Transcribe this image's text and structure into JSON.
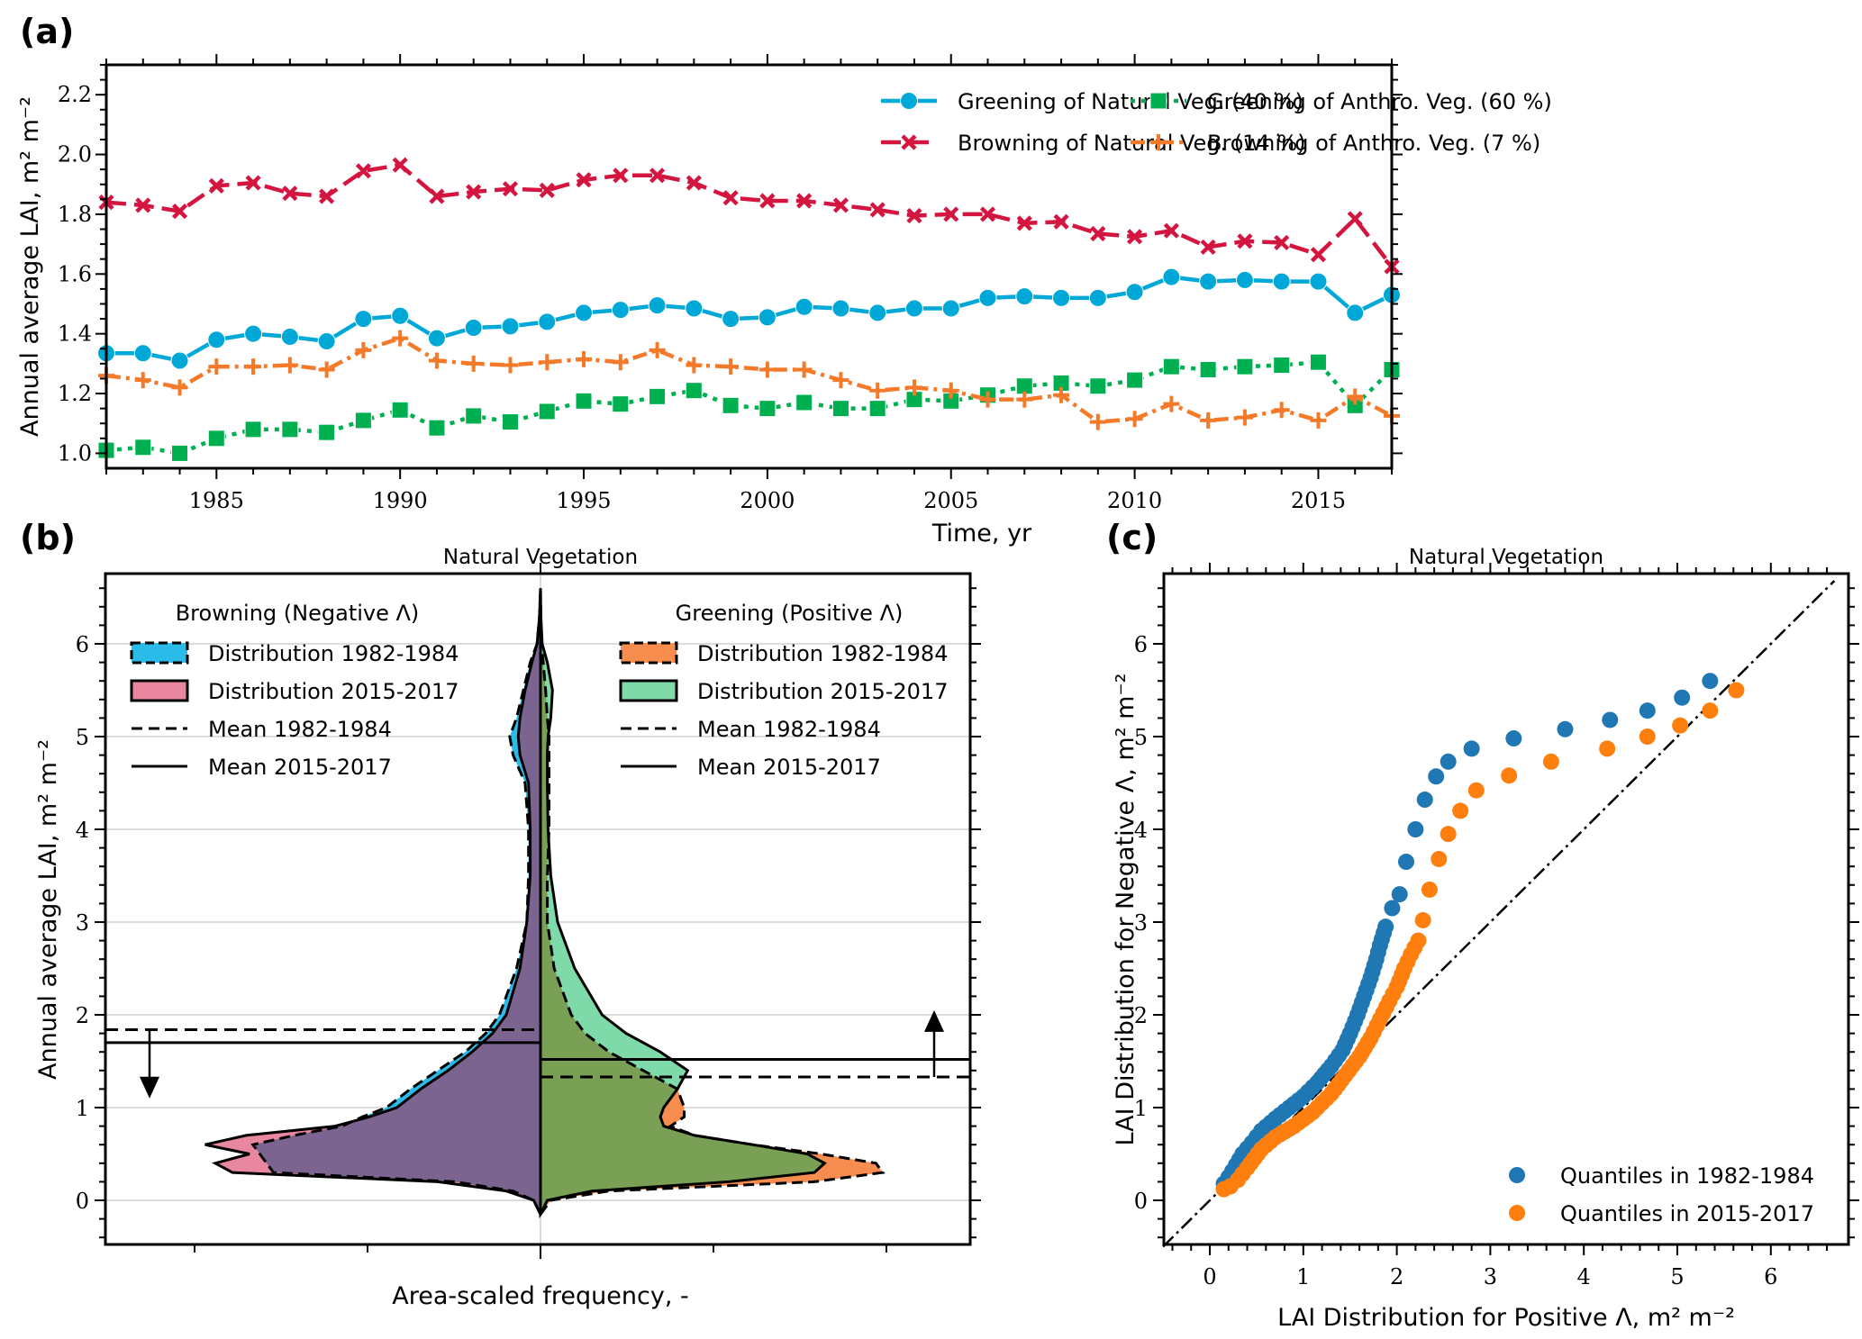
{
  "chart_data": [
    {
      "panel": "(a)",
      "type": "line",
      "title": "",
      "xlabel": "Time, yr",
      "ylabel": "Annual average LAI, m² m⁻²",
      "xlim": [
        1982,
        2017
      ],
      "ylim": [
        0.95,
        2.3
      ],
      "xticks": [
        1985,
        1990,
        1995,
        2000,
        2005,
        2010,
        2015
      ],
      "xtick_labels": [
        "1985",
        "1990",
        "1995",
        "2000",
        "2005",
        "2010",
        "2015"
      ],
      "yticks": [
        1.0,
        1.2,
        1.4,
        1.6,
        1.8,
        2.0,
        2.2
      ],
      "ytick_labels": [
        "1.0",
        "1.2",
        "1.4",
        "1.6",
        "1.8",
        "2.0",
        "2.2"
      ],
      "legend_position": "top-right",
      "x": [
        1982,
        1983,
        1984,
        1985,
        1986,
        1987,
        1988,
        1989,
        1990,
        1991,
        1992,
        1993,
        1994,
        1995,
        1996,
        1997,
        1998,
        1999,
        2000,
        2001,
        2002,
        2003,
        2004,
        2005,
        2006,
        2007,
        2008,
        2009,
        2010,
        2011,
        2012,
        2013,
        2014,
        2015,
        2016,
        2017
      ],
      "series": [
        {
          "name": "Greening of Natural Veg. (40 %)",
          "color": "#00a8d8",
          "marker": "circle",
          "linestyle": "solid",
          "values": [
            1.335,
            1.335,
            1.31,
            1.38,
            1.4,
            1.39,
            1.375,
            1.45,
            1.46,
            1.385,
            1.42,
            1.425,
            1.44,
            1.47,
            1.48,
            1.495,
            1.485,
            1.45,
            1.455,
            1.49,
            1.485,
            1.47,
            1.485,
            1.485,
            1.52,
            1.525,
            1.52,
            1.52,
            1.54,
            1.59,
            1.575,
            1.58,
            1.575,
            1.575,
            1.47,
            1.53
          ]
        },
        {
          "name": "Browning of Natural Veg. (14 %)",
          "color": "#d4153f",
          "marker": "x",
          "linestyle": "dashed",
          "values": [
            1.84,
            1.83,
            1.81,
            1.895,
            1.905,
            1.87,
            1.86,
            1.945,
            1.965,
            1.86,
            1.875,
            1.885,
            1.88,
            1.915,
            1.93,
            1.93,
            1.905,
            1.855,
            1.845,
            1.845,
            1.83,
            1.815,
            1.795,
            1.8,
            1.8,
            1.77,
            1.775,
            1.735,
            1.725,
            1.745,
            1.69,
            1.71,
            1.705,
            1.665,
            1.785,
            1.625
          ]
        },
        {
          "name": "Greening of Anthro. Veg. (60 %)",
          "color": "#00b050",
          "marker": "square",
          "linestyle": "dotted",
          "values": [
            1.01,
            1.02,
            1.0,
            1.05,
            1.08,
            1.08,
            1.07,
            1.11,
            1.145,
            1.085,
            1.125,
            1.105,
            1.14,
            1.175,
            1.165,
            1.19,
            1.21,
            1.16,
            1.15,
            1.17,
            1.15,
            1.15,
            1.18,
            1.175,
            1.195,
            1.225,
            1.235,
            1.225,
            1.245,
            1.29,
            1.28,
            1.29,
            1.295,
            1.305,
            1.16,
            1.28
          ]
        },
        {
          "name": "Browning of Anthro. Veg. (7 %)",
          "color": "#f47a2a",
          "marker": "plus",
          "linestyle": "dashdot",
          "values": [
            1.26,
            1.245,
            1.22,
            1.29,
            1.29,
            1.295,
            1.28,
            1.345,
            1.385,
            1.31,
            1.3,
            1.295,
            1.305,
            1.315,
            1.305,
            1.345,
            1.295,
            1.29,
            1.28,
            1.28,
            1.245,
            1.21,
            1.22,
            1.21,
            1.18,
            1.18,
            1.195,
            1.105,
            1.115,
            1.165,
            1.11,
            1.12,
            1.145,
            1.11,
            1.19,
            1.125
          ]
        }
      ]
    },
    {
      "panel": "(b)",
      "type": "area",
      "subtype": "split-violin",
      "title": "Natural Vegetation",
      "xlabel": "Area-scaled frequency, -",
      "ylabel": "Annual average LAI, m² m⁻²",
      "ylim": [
        -0.5,
        6.7
      ],
      "yticks": [
        0,
        1,
        2,
        3,
        4,
        5,
        6
      ],
      "ytick_labels": [
        "0",
        "1",
        "2",
        "3",
        "4",
        "5",
        "6"
      ],
      "grid": true,
      "legend_left": {
        "title": "Browning (Negative Λ)",
        "entries": [
          {
            "label": "Distribution 1982-1984",
            "kind": "patch",
            "fill": "#2bbbe8",
            "edge": "dashed"
          },
          {
            "label": "Distribution 2015-2017",
            "kind": "patch",
            "fill": "#e8879f",
            "edge": "solid"
          },
          {
            "label": "Mean 1982-1984",
            "kind": "line",
            "edge": "dashed"
          },
          {
            "label": "Mean 2015-2017",
            "kind": "line",
            "edge": "solid"
          }
        ]
      },
      "legend_right": {
        "title": "Greening (Positive Λ)",
        "entries": [
          {
            "label": "Distribution 1982-1984",
            "kind": "patch",
            "fill": "#f68c4e",
            "edge": "dashed"
          },
          {
            "label": "Distribution 2015-2017",
            "kind": "patch",
            "fill": "#7fdaa9",
            "edge": "solid"
          },
          {
            "label": "Mean 1982-1984",
            "kind": "line",
            "edge": "dashed"
          },
          {
            "label": "Mean 2015-2017",
            "kind": "line",
            "edge": "solid"
          }
        ]
      },
      "overlap_colors": {
        "browning": "#7b6590",
        "greening": "#79a055"
      },
      "means": {
        "browning_1982_1984": 1.84,
        "browning_2015_2017": 1.7,
        "greening_1982_1984": 1.33,
        "greening_2015_2017": 1.52
      },
      "trend_arrows": {
        "browning": "down",
        "greening": "up"
      },
      "density_y": [
        -0.15,
        0.0,
        0.1,
        0.2,
        0.3,
        0.4,
        0.5,
        0.6,
        0.7,
        0.8,
        0.9,
        1.0,
        1.2,
        1.4,
        1.6,
        1.8,
        2.0,
        2.5,
        3.0,
        3.5,
        4.0,
        4.5,
        4.8,
        5.0,
        5.2,
        5.5,
        5.8,
        6.0,
        6.3,
        6.6
      ],
      "series": [
        {
          "name": "Browning 1982-1984",
          "side": "left",
          "values": [
            0.0,
            0.02,
            0.08,
            0.25,
            0.78,
            0.8,
            0.82,
            0.84,
            0.72,
            0.58,
            0.52,
            0.45,
            0.38,
            0.3,
            0.22,
            0.16,
            0.12,
            0.07,
            0.04,
            0.035,
            0.035,
            0.045,
            0.08,
            0.09,
            0.07,
            0.05,
            0.03,
            0.01,
            0.003,
            0.0
          ]
        },
        {
          "name": "Browning 2015-2017",
          "side": "left",
          "values": [
            0.0,
            0.02,
            0.1,
            0.3,
            0.9,
            0.95,
            0.85,
            0.98,
            0.86,
            0.6,
            0.5,
            0.42,
            0.35,
            0.27,
            0.2,
            0.14,
            0.1,
            0.06,
            0.04,
            0.03,
            0.03,
            0.035,
            0.06,
            0.065,
            0.06,
            0.045,
            0.025,
            0.01,
            0.003,
            0.0
          ]
        },
        {
          "name": "Greening 1982-1984",
          "side": "right",
          "values": [
            0.0,
            0.03,
            0.2,
            0.8,
            1.0,
            0.98,
            0.82,
            0.62,
            0.45,
            0.38,
            0.42,
            0.42,
            0.4,
            0.3,
            0.2,
            0.13,
            0.09,
            0.04,
            0.02,
            0.02,
            0.025,
            0.025,
            0.025,
            0.025,
            0.02,
            0.015,
            0.008,
            0.003,
            0.001,
            0.0
          ]
        },
        {
          "name": "Greening 2015-2017",
          "side": "right",
          "values": [
            0.0,
            0.02,
            0.15,
            0.55,
            0.8,
            0.83,
            0.78,
            0.62,
            0.45,
            0.36,
            0.35,
            0.36,
            0.4,
            0.43,
            0.35,
            0.25,
            0.18,
            0.1,
            0.05,
            0.03,
            0.022,
            0.02,
            0.02,
            0.022,
            0.03,
            0.035,
            0.02,
            0.005,
            0.001,
            0.0
          ]
        }
      ]
    },
    {
      "panel": "(c)",
      "type": "scatter",
      "title": "Natural Vegetation",
      "xlabel": "LAI Distribution for Positive Λ, m² m⁻²",
      "ylabel": "LAI Distribution for Negative Λ, m² m⁻²",
      "xlim": [
        -0.5,
        6.8
      ],
      "ylim": [
        -0.5,
        6.7
      ],
      "xticks": [
        0,
        1,
        2,
        3,
        4,
        5,
        6
      ],
      "xtick_labels": [
        "0",
        "1",
        "2",
        "3",
        "4",
        "5",
        "6"
      ],
      "yticks": [
        0,
        1,
        2,
        3,
        4,
        5,
        6
      ],
      "ytick_labels": [
        "0",
        "1",
        "2",
        "3",
        "4",
        "5",
        "6"
      ],
      "reference_line": "y = x (dash-dot)",
      "legend_position": "bottom-right",
      "series": [
        {
          "name": "Quantiles in 1982-1984",
          "color": "#1f77b4",
          "points": [
            [
              0.15,
              0.18
            ],
            [
              0.2,
              0.25
            ],
            [
              0.28,
              0.38
            ],
            [
              0.35,
              0.5
            ],
            [
              0.45,
              0.62
            ],
            [
              0.55,
              0.75
            ],
            [
              0.7,
              0.88
            ],
            [
              0.85,
              1.0
            ],
            [
              1.0,
              1.12
            ],
            [
              1.15,
              1.27
            ],
            [
              1.3,
              1.45
            ],
            [
              1.42,
              1.62
            ],
            [
              1.5,
              1.8
            ],
            [
              1.58,
              2.0
            ],
            [
              1.65,
              2.2
            ],
            [
              1.72,
              2.4
            ],
            [
              1.78,
              2.6
            ],
            [
              1.82,
              2.75
            ],
            [
              1.88,
              2.95
            ],
            [
              1.95,
              3.15
            ],
            [
              2.03,
              3.3
            ],
            [
              2.1,
              3.65
            ],
            [
              2.2,
              4.0
            ],
            [
              2.3,
              4.32
            ],
            [
              2.42,
              4.57
            ],
            [
              2.55,
              4.73
            ],
            [
              2.8,
              4.87
            ],
            [
              3.25,
              4.98
            ],
            [
              3.8,
              5.08
            ],
            [
              4.28,
              5.18
            ],
            [
              4.68,
              5.28
            ],
            [
              5.05,
              5.42
            ],
            [
              5.35,
              5.6
            ]
          ]
        },
        {
          "name": "Quantiles in 2015-2017",
          "color": "#ff7f0e",
          "points": [
            [
              0.15,
              0.12
            ],
            [
              0.22,
              0.15
            ],
            [
              0.3,
              0.22
            ],
            [
              0.4,
              0.35
            ],
            [
              0.55,
              0.55
            ],
            [
              0.7,
              0.68
            ],
            [
              0.9,
              0.8
            ],
            [
              1.1,
              0.95
            ],
            [
              1.3,
              1.15
            ],
            [
              1.45,
              1.35
            ],
            [
              1.6,
              1.55
            ],
            [
              1.72,
              1.75
            ],
            [
              1.82,
              1.95
            ],
            [
              1.92,
              2.15
            ],
            [
              2.0,
              2.3
            ],
            [
              2.08,
              2.5
            ],
            [
              2.15,
              2.65
            ],
            [
              2.23,
              2.8
            ],
            [
              2.28,
              3.02
            ],
            [
              2.35,
              3.35
            ],
            [
              2.45,
              3.68
            ],
            [
              2.55,
              3.95
            ],
            [
              2.68,
              4.2
            ],
            [
              2.85,
              4.42
            ],
            [
              3.2,
              4.58
            ],
            [
              3.65,
              4.73
            ],
            [
              4.25,
              4.87
            ],
            [
              4.68,
              5.0
            ],
            [
              5.03,
              5.12
            ],
            [
              5.35,
              5.28
            ],
            [
              5.63,
              5.5
            ]
          ]
        }
      ]
    }
  ],
  "panel_labels": [
    "(a)",
    "(b)",
    "(c)"
  ]
}
